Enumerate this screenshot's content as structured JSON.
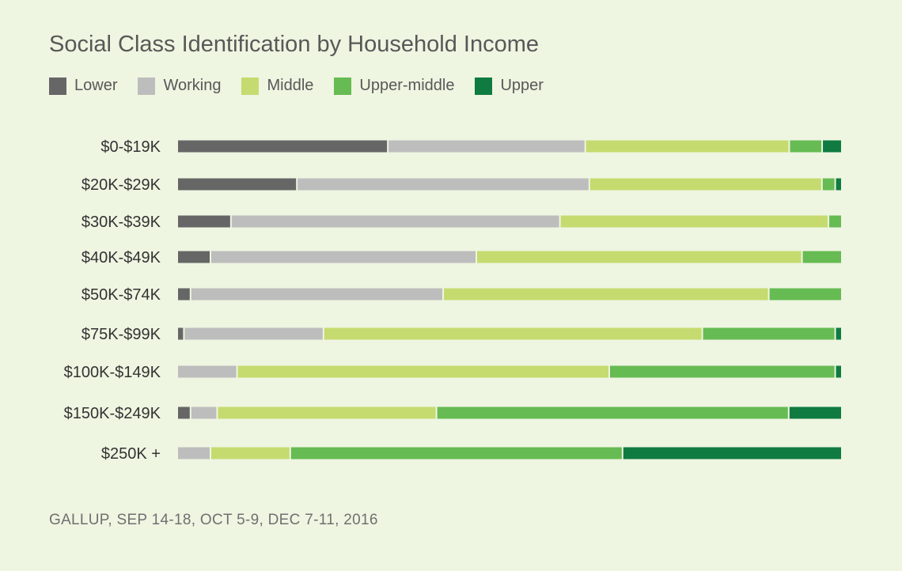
{
  "title": "Social Class Identification by Household Income",
  "source": "GALLUP, SEP 14-18, OCT 5-9, DEC 7-11, 2016",
  "chart_data": {
    "type": "bar",
    "orientation": "horizontal",
    "stacked": "percent",
    "title": "Social Class Identification by Household Income",
    "xlim": [
      0,
      100
    ],
    "grid": false,
    "legend_position": "top-left",
    "categories": [
      "$0-$19K",
      "$20K-$29K",
      "$30K-$39K",
      "$40K-$49K",
      "$50K-$74K",
      "$75K-$99K",
      "$100K-$149K",
      "$150K-$249K",
      "$250K +"
    ],
    "series": [
      {
        "name": "Lower",
        "color": "#666666",
        "values": [
          32,
          18,
          8,
          5,
          2,
          1,
          0,
          2,
          0
        ]
      },
      {
        "name": "Working",
        "color": "#bdbdbd",
        "values": [
          30,
          44,
          49,
          40,
          38,
          21,
          9,
          4,
          5
        ]
      },
      {
        "name": "Middle",
        "color": "#c5db6f",
        "values": [
          31,
          35,
          40,
          49,
          49,
          57,
          56,
          33,
          12
        ]
      },
      {
        "name": "Upper-middle",
        "color": "#66bb53",
        "values": [
          5,
          2,
          2,
          6,
          11,
          20,
          34,
          53,
          50
        ]
      },
      {
        "name": "Upper",
        "color": "#0f7b40",
        "values": [
          3,
          1,
          0,
          0,
          0,
          1,
          1,
          8,
          33
        ]
      }
    ]
  }
}
